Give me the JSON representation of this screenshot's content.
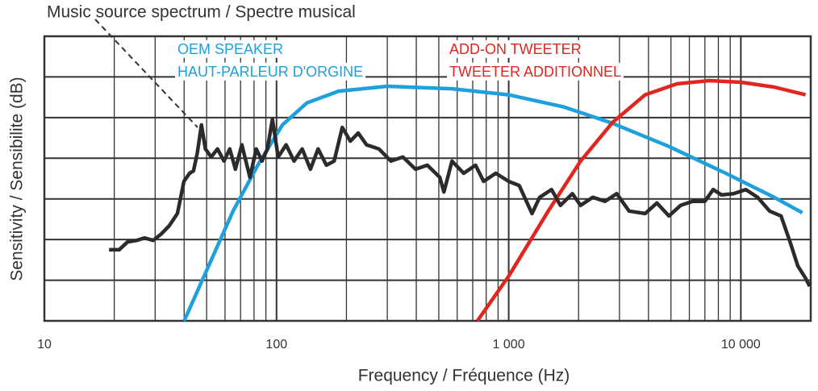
{
  "chart_data": {
    "type": "line",
    "title": "Music source spectrum / Spectre musical",
    "x_label": "Frequency / Fréquence (Hz)",
    "y_label": "Sensitivity / Sensibilite (dB)",
    "log_x": true,
    "grid": true,
    "xlim": [
      10,
      20000
    ],
    "xticks": [
      10,
      100,
      {
        "value": 1000,
        "label": "1 000"
      },
      {
        "value": 10000,
        "label": "10 000"
      }
    ],
    "xminorticks": [
      20,
      30,
      40,
      50,
      60,
      70,
      80,
      90,
      200,
      300,
      400,
      500,
      600,
      700,
      800,
      900,
      2000,
      3000,
      4000,
      5000,
      6000,
      7000,
      8000,
      9000
    ],
    "ylim": [
      0,
      7
    ],
    "yticks": [
      1,
      2,
      3,
      4,
      5,
      6
    ],
    "series": [
      {
        "name": [
          "OEM SPEAKER",
          "HAUT-PARLEUR D'ORGINE"
        ],
        "color": "#1ea0dc",
        "x": [
          40,
          51,
          65,
          83,
          106,
          135,
          185,
          300,
          570,
          1000,
          1730,
          2800,
          4900,
          8600,
          13900,
          18400
        ],
        "values": [
          0,
          1.35,
          2.7,
          3.83,
          4.82,
          5.36,
          5.65,
          5.77,
          5.71,
          5.56,
          5.26,
          4.86,
          4.29,
          3.63,
          3.04,
          2.66
        ]
      },
      {
        "name": [
          "ADD-ON TWEETER",
          "TWEETER ADDITIONNEL"
        ],
        "color": "#e0261f",
        "x": [
          733,
          1000,
          1480,
          2040,
          2800,
          3870,
          5300,
          7300,
          10000,
          13900,
          19000
        ],
        "values": [
          0,
          1.1,
          2.7,
          3.93,
          4.88,
          5.56,
          5.83,
          5.91,
          5.87,
          5.75,
          5.56
        ]
      },
      {
        "name": "Music source spectrum / Spectre musical",
        "color": "#2b2b2b",
        "x": [
          19,
          21,
          22.8,
          25,
          27,
          29.4,
          31.9,
          34.5,
          37.4,
          39.9,
          42.2,
          43.9,
          45.6,
          47.5,
          49.4,
          52.3,
          55.7,
          59.4,
          62.9,
          66.5,
          70.9,
          76.8,
          81.8,
          86.6,
          91.4,
          96,
          101.6,
          110,
          119,
          129,
          140,
          151,
          164,
          177,
          192,
          208,
          225,
          244,
          276,
          311,
          350,
          397,
          446,
          505,
          526,
          570,
          640,
          720,
          780,
          880,
          1000,
          1110,
          1260,
          1360,
          1530,
          1670,
          1880,
          2040,
          2300,
          2600,
          2920,
          3300,
          3870,
          4350,
          4900,
          5500,
          6200,
          7000,
          7600,
          8250,
          9300,
          10500,
          11800,
          13300,
          14900,
          16300,
          17600,
          19000,
          19800
        ],
        "values": [
          1.75,
          1.75,
          1.94,
          1.98,
          2.04,
          1.98,
          2.14,
          2.34,
          2.64,
          3.43,
          3.63,
          3.69,
          4.13,
          4.82,
          4.23,
          4.03,
          4.23,
          3.93,
          4.23,
          3.73,
          4.33,
          3.53,
          4.23,
          3.93,
          4.23,
          4.96,
          4.03,
          4.33,
          3.93,
          4.23,
          3.73,
          4.23,
          3.83,
          3.93,
          4.76,
          4.42,
          4.62,
          4.33,
          4.23,
          3.93,
          4.03,
          3.73,
          3.83,
          3.53,
          3.17,
          3.93,
          3.63,
          3.83,
          3.43,
          3.63,
          3.43,
          3.33,
          2.64,
          3.04,
          3.23,
          2.84,
          3.13,
          2.84,
          3.04,
          2.94,
          3.13,
          2.7,
          2.64,
          2.9,
          2.58,
          2.84,
          2.94,
          2.94,
          3.23,
          3.1,
          3.13,
          3.23,
          3.04,
          2.7,
          2.58,
          1.94,
          1.35,
          1.05,
          0.85
        ]
      }
    ]
  }
}
